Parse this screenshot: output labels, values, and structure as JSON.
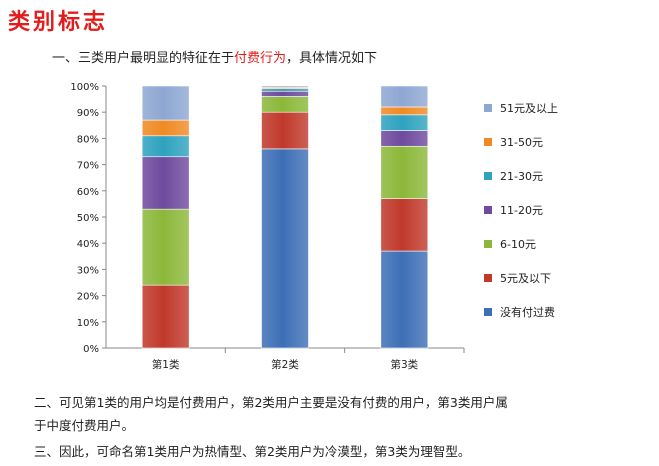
{
  "page": {
    "title": "类别标志",
    "line1_prefix": "一、三类用户最明显的特征在于",
    "line1_highlight": "付费行为",
    "line1_suffix": "，具体情况如下",
    "para2_line1": "二、可见第1类的用户均是付费用户，第2类用户主要是没有付费的用户，第3类用户属",
    "para2_line2": "于中度付费用户。",
    "para3": "三、因此，可命名第1类用户为热情型、第2类用户为冷漠型，第3类为理智型。",
    "highlight_color": "#e31c1c"
  },
  "chart_data": {
    "type": "bar",
    "stacked": true,
    "percent": true,
    "categories": [
      "第1类",
      "第2类",
      "第3类"
    ],
    "ylim": [
      0,
      100
    ],
    "yticks": [
      "0%",
      "10%",
      "20%",
      "30%",
      "40%",
      "50%",
      "60%",
      "70%",
      "80%",
      "90%",
      "100%"
    ],
    "legend_position": "right",
    "grid": false,
    "series": [
      {
        "name": "没有付过费",
        "color": "#3d6fb6",
        "values": [
          0,
          76,
          37
        ]
      },
      {
        "name": "5元及以下",
        "color": "#c0392b",
        "values": [
          24,
          14,
          20
        ]
      },
      {
        "name": "6-10元",
        "color": "#8bb83a",
        "values": [
          29,
          6,
          20
        ]
      },
      {
        "name": "11-20元",
        "color": "#6f4a9e",
        "values": [
          20,
          2,
          6
        ]
      },
      {
        "name": "21-30元",
        "color": "#2fa2bf",
        "values": [
          8,
          1,
          6
        ]
      },
      {
        "name": "31-50元",
        "color": "#f08a24",
        "values": [
          6,
          0.5,
          3
        ]
      },
      {
        "name": "51元及以上",
        "color": "#8ea7d2",
        "values": [
          13,
          0.5,
          8
        ]
      }
    ]
  }
}
